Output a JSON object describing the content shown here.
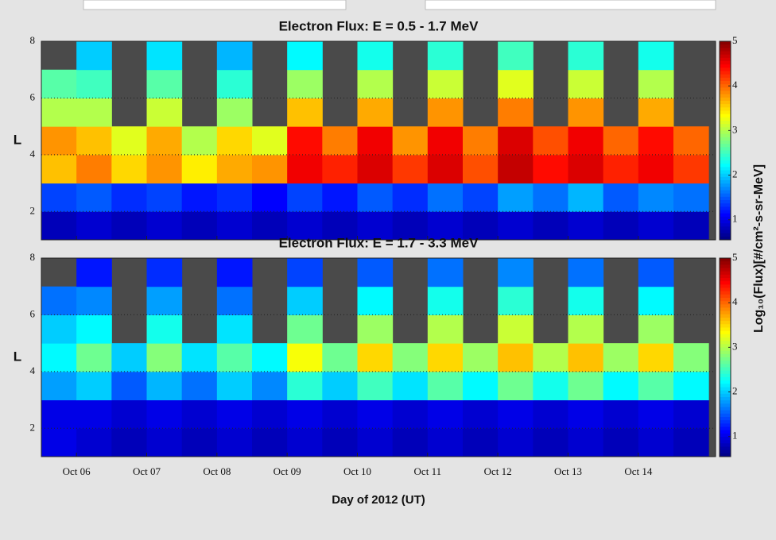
{
  "chart_data": [
    {
      "type": "heatmap",
      "title": "Electron Flux: E = 0.5 - 1.7 MeV",
      "ylabel": "L",
      "colorbar_label": "Log₁₀(Flux)[#/cm²-s-sr-MeV]",
      "xlim": [
        5.5,
        15.1
      ],
      "xticks": [
        6,
        7,
        8,
        9,
        10,
        11,
        12,
        13,
        14
      ],
      "ylim": [
        1,
        8
      ],
      "yticks": [
        2,
        4,
        6,
        8
      ],
      "clim": [
        0.55,
        5
      ],
      "cticks": [
        1,
        2,
        3,
        4,
        5
      ],
      "xbins": [
        5.5,
        6,
        6.5,
        7,
        7.5,
        8,
        8.5,
        9,
        9.5,
        10,
        10.5,
        11,
        11.5,
        12,
        12.5,
        13,
        13.5,
        14,
        14.5,
        15
      ],
      "ybins": [
        1,
        2,
        3,
        4,
        5,
        6,
        7,
        8
      ],
      "z": [
        [
          0.8,
          0.9,
          0.8,
          0.9,
          0.8,
          0.9,
          0.8,
          0.9,
          0.8,
          0.9,
          0.8,
          0.9,
          0.8,
          0.9,
          0.8,
          0.9,
          0.8,
          0.9,
          0.8
        ],
        [
          1.4,
          1.5,
          1.3,
          1.4,
          1.2,
          1.3,
          1.1,
          1.4,
          1.2,
          1.5,
          1.3,
          1.6,
          1.4,
          1.8,
          1.6,
          1.9,
          1.5,
          1.7,
          1.6
        ],
        [
          3.6,
          3.9,
          3.5,
          3.8,
          3.4,
          3.7,
          3.8,
          4.5,
          4.3,
          4.6,
          4.2,
          4.6,
          4.1,
          4.7,
          4.4,
          4.6,
          4.3,
          4.5,
          4.2
        ],
        [
          3.8,
          3.6,
          3.2,
          3.7,
          3.0,
          3.5,
          3.2,
          4.4,
          3.9,
          4.5,
          3.8,
          4.5,
          3.9,
          4.6,
          4.1,
          4.5,
          4.0,
          4.4,
          4.0
        ],
        [
          3.0,
          3.0,
          null,
          3.1,
          null,
          2.9,
          null,
          3.6,
          null,
          3.7,
          null,
          3.8,
          null,
          3.9,
          null,
          3.8,
          null,
          3.7,
          null
        ],
        [
          2.6,
          2.5,
          null,
          2.6,
          null,
          2.4,
          null,
          2.9,
          null,
          3.0,
          null,
          3.1,
          null,
          3.2,
          null,
          3.1,
          null,
          3.0,
          null
        ],
        [
          null,
          2.0,
          null,
          2.1,
          null,
          1.9,
          null,
          2.2,
          null,
          2.3,
          null,
          2.4,
          null,
          2.5,
          null,
          2.4,
          null,
          2.3,
          null
        ]
      ]
    },
    {
      "type": "heatmap",
      "title": "Electron Flux: E = 1.7 - 3.3 MeV",
      "ylabel": "L",
      "xlabel": "Day of 2012 (UT)",
      "xlim": [
        5.5,
        15.1
      ],
      "xticks": [
        {
          "value": 6,
          "label": "Oct 06"
        },
        {
          "value": 7,
          "label": "Oct 07"
        },
        {
          "value": 8,
          "label": "Oct 08"
        },
        {
          "value": 9,
          "label": "Oct 09"
        },
        {
          "value": 10,
          "label": "Oct 10"
        },
        {
          "value": 11,
          "label": "Oct 11"
        },
        {
          "value": 12,
          "label": "Oct 12"
        },
        {
          "value": 13,
          "label": "Oct 13"
        },
        {
          "value": 14,
          "label": "Oct 14"
        }
      ],
      "ylim": [
        1,
        8
      ],
      "yticks": [
        2,
        4,
        6,
        8
      ],
      "clim": [
        0.55,
        5
      ],
      "cticks": [
        1,
        2,
        3,
        4,
        5
      ],
      "xbins": [
        5.5,
        6,
        6.5,
        7,
        7.5,
        8,
        8.5,
        9,
        9.5,
        10,
        10.5,
        11,
        11.5,
        12,
        12.5,
        13,
        13.5,
        14,
        14.5,
        15
      ],
      "ybins": [
        1,
        2,
        3,
        4,
        5,
        6,
        7,
        8
      ],
      "z": [
        [
          1.0,
          0.9,
          0.8,
          0.9,
          0.8,
          0.9,
          0.8,
          0.9,
          0.8,
          0.9,
          0.8,
          0.9,
          0.8,
          0.9,
          0.8,
          0.9,
          0.8,
          0.9,
          0.8
        ],
        [
          1.0,
          1.0,
          0.9,
          1.0,
          0.9,
          1.0,
          0.9,
          1.0,
          0.9,
          1.0,
          0.9,
          1.0,
          0.9,
          1.0,
          0.9,
          1.0,
          0.9,
          1.0,
          0.9
        ],
        [
          1.8,
          2.0,
          1.5,
          1.9,
          1.6,
          2.0,
          1.7,
          2.4,
          2.0,
          2.5,
          2.1,
          2.6,
          2.2,
          2.7,
          2.3,
          2.7,
          2.2,
          2.6,
          2.2
        ],
        [
          2.2,
          2.7,
          2.0,
          2.8,
          2.1,
          2.6,
          2.2,
          3.3,
          2.7,
          3.5,
          2.8,
          3.5,
          2.9,
          3.6,
          3.0,
          3.6,
          2.9,
          3.5,
          2.8
        ],
        [
          2.0,
          2.2,
          null,
          2.3,
          null,
          2.1,
          null,
          2.7,
          null,
          2.9,
          null,
          3.0,
          null,
          3.1,
          null,
          3.0,
          null,
          2.9,
          null
        ],
        [
          1.6,
          1.7,
          null,
          1.8,
          null,
          1.6,
          null,
          2.0,
          null,
          2.2,
          null,
          2.3,
          null,
          2.4,
          null,
          2.3,
          null,
          2.2,
          null
        ],
        [
          null,
          1.2,
          null,
          1.3,
          null,
          1.2,
          null,
          1.4,
          null,
          1.5,
          null,
          1.6,
          null,
          1.7,
          null,
          1.6,
          null,
          1.5,
          null
        ]
      ]
    }
  ]
}
